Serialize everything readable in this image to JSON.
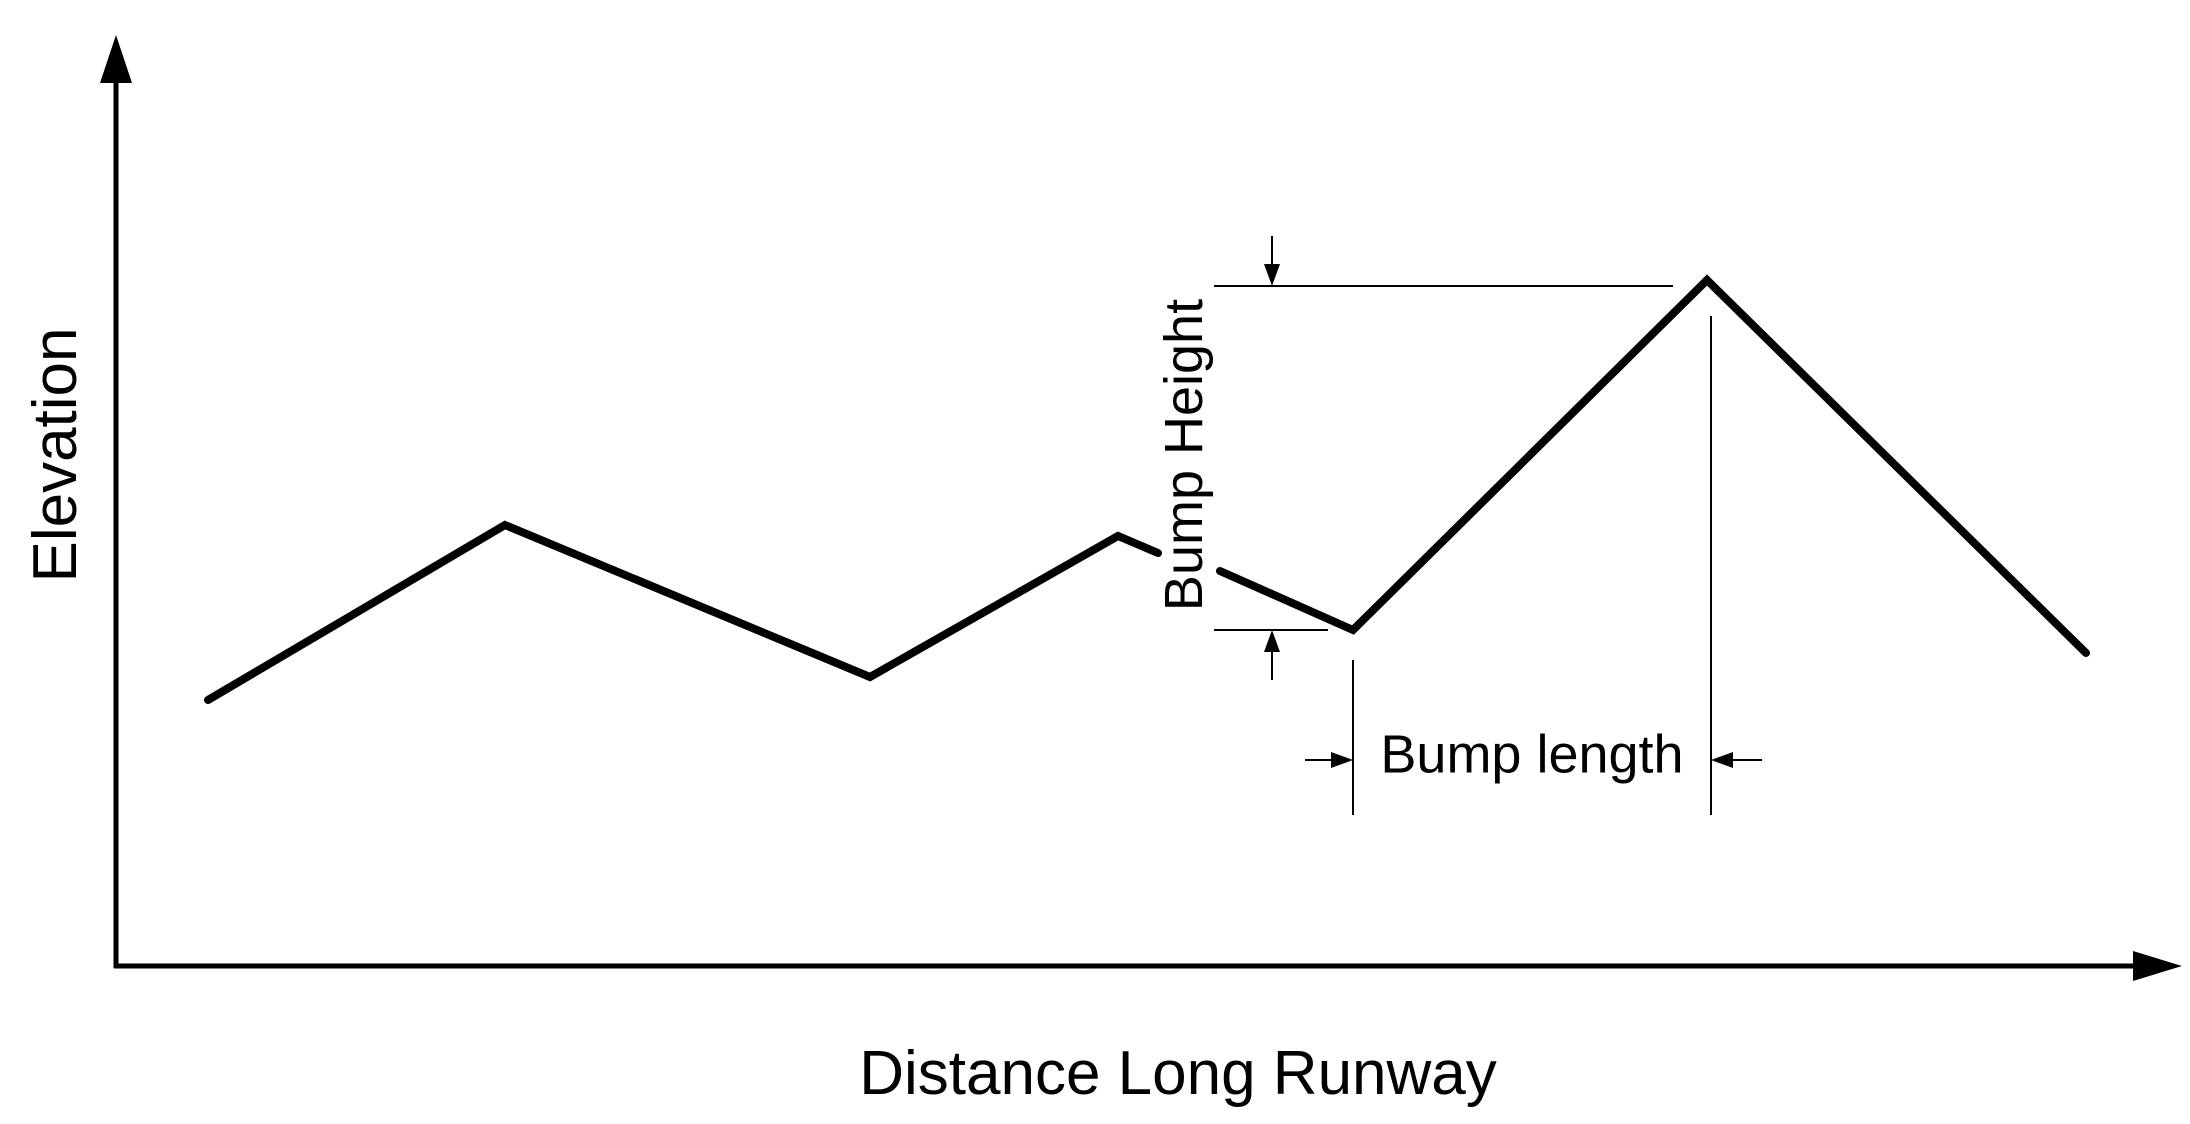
{
  "labels": {
    "y_axis": "Elevation",
    "x_axis": "Distance Long Runway",
    "bump_height": "Bump Height",
    "bump_length": "Bump length"
  },
  "colors": {
    "ink": "#000000",
    "background": "#ffffff"
  }
}
